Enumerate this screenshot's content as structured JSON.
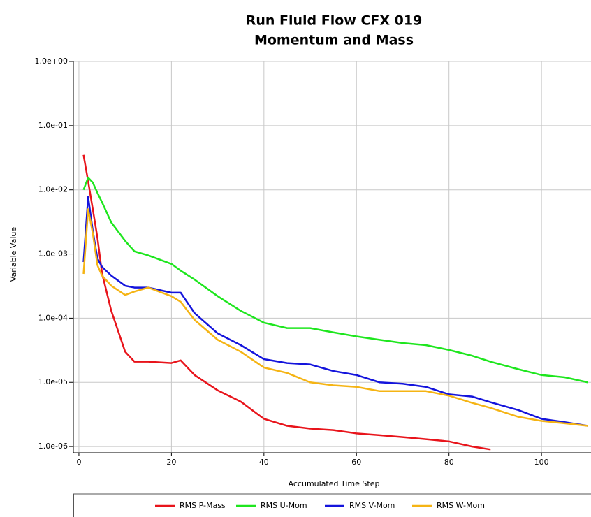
{
  "chart_data": {
    "type": "line",
    "title": "Run Fluid Flow CFX 019",
    "subtitle": "Momentum and Mass",
    "xlabel": "Accumulated Time Step",
    "ylabel": "Variable Value",
    "log_y": true,
    "grid": true,
    "legend_position": "bottom",
    "xlim": [
      -1.2,
      110.7
    ],
    "ylim": [
      8e-07,
      1
    ],
    "xticks": [
      0,
      20,
      40,
      60,
      80,
      100
    ],
    "yticks": [
      {
        "value": 1,
        "label": "1.0e+00"
      },
      {
        "value": 0.1,
        "label": "1.0e-01"
      },
      {
        "value": 0.01,
        "label": "1.0e-02"
      },
      {
        "value": 0.001,
        "label": "1.0e-03"
      },
      {
        "value": 0.0001,
        "label": "1.0e-04"
      },
      {
        "value": 1e-05,
        "label": "1.0e-05"
      },
      {
        "value": 1e-06,
        "label": "1.0e-06"
      }
    ],
    "x": [
      1,
      2,
      3,
      4,
      5,
      7,
      10,
      12,
      15,
      20,
      22,
      25,
      30,
      35,
      40,
      45,
      50,
      55,
      60,
      65,
      70,
      75,
      80,
      85,
      89,
      95,
      100,
      105,
      110
    ],
    "series": [
      {
        "name": "RMS P-Mass",
        "color": "#e8141b",
        "values": [
          0.035,
          0.0135,
          0.005,
          0.0018,
          0.0005,
          0.00013,
          3e-05,
          2.1e-05,
          2.1e-05,
          2e-05,
          2.2e-05,
          1.3e-05,
          7.5e-06,
          5e-06,
          2.7e-06,
          2.1e-06,
          1.9e-06,
          1.8e-06,
          1.6e-06,
          1.5e-06,
          1.4e-06,
          1.3e-06,
          1.2e-06,
          1e-06,
          9e-07,
          null,
          null,
          null,
          null
        ]
      },
      {
        "name": "RMS U-Mom",
        "color": "#1ee61e",
        "values": [
          0.01,
          0.0155,
          0.013,
          0.009,
          0.0064,
          0.0031,
          0.0016,
          0.0011,
          0.00095,
          0.0007,
          0.00055,
          0.0004,
          0.00022,
          0.00013,
          8.5e-05,
          7e-05,
          7e-05,
          6e-05,
          5.2e-05,
          4.6e-05,
          4.1e-05,
          3.8e-05,
          3.2e-05,
          2.6e-05,
          2.1e-05,
          1.6e-05,
          1.3e-05,
          1.2e-05,
          1e-05
        ]
      },
      {
        "name": "RMS V-Mom",
        "color": "#1414dc",
        "values": [
          0.00075,
          0.0078,
          0.0023,
          0.00085,
          0.00063,
          0.00046,
          0.00032,
          0.0003,
          0.0003,
          0.00025,
          0.00025,
          0.00012,
          5.8e-05,
          3.8e-05,
          2.3e-05,
          2e-05,
          1.9e-05,
          1.5e-05,
          1.3e-05,
          1e-05,
          9.5e-06,
          8.5e-06,
          6.5e-06,
          6e-06,
          4.9e-06,
          3.7e-06,
          2.7e-06,
          2.4e-06,
          2.1e-06
        ]
      },
      {
        "name": "RMS W-Mom",
        "color": "#f5b414",
        "values": [
          0.00049,
          0.005,
          0.0021,
          0.00067,
          0.00046,
          0.00032,
          0.00023,
          0.00026,
          0.0003,
          0.00022,
          0.00018,
          9.4e-05,
          4.6e-05,
          3e-05,
          1.7e-05,
          1.4e-05,
          1e-05,
          9e-06,
          8.5e-06,
          7.3e-06,
          7.3e-06,
          7.3e-06,
          6.2e-06,
          4.8e-06,
          4e-06,
          2.9e-06,
          2.5e-06,
          2.3e-06,
          2.1e-06
        ]
      }
    ]
  }
}
